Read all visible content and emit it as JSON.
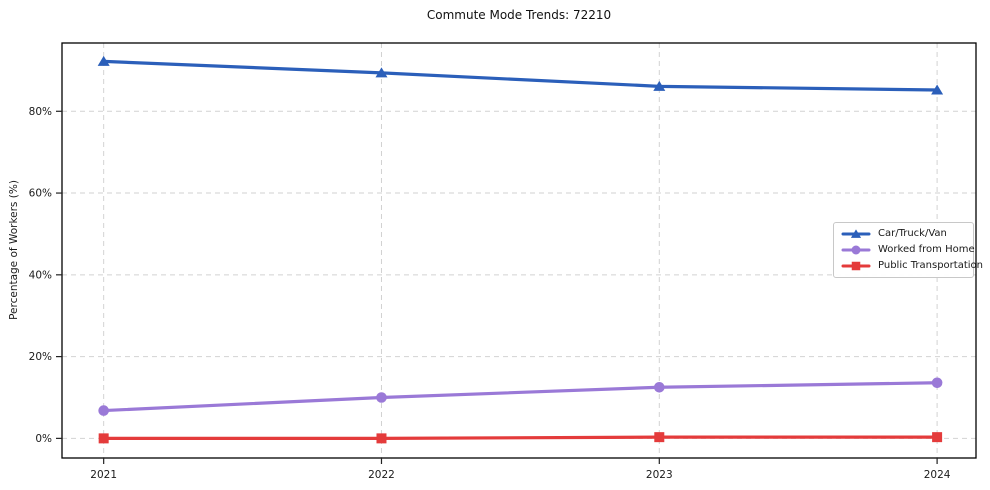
{
  "chart_data": {
    "type": "line",
    "title": "Commute Mode Trends: 72210",
    "xlabel": "",
    "ylabel": "Percentage of Workers (%)",
    "x": [
      2021,
      2022,
      2023,
      2024
    ],
    "x_tick_labels": [
      "2021",
      "2022",
      "2023",
      "2024"
    ],
    "y_ticks": [
      0,
      20,
      40,
      60,
      80
    ],
    "y_tick_labels": [
      "0%",
      "20%",
      "40%",
      "60%",
      "80%"
    ],
    "xlim": [
      2020.85,
      2024.14
    ],
    "ylim": [
      -4.8,
      96.7
    ],
    "grid": true,
    "grid_style": "dashed",
    "grid_color": "#d2d2d2",
    "legend_position": "center-right",
    "series": [
      {
        "name": "Car/Truck/Van",
        "color": "#2b5fba",
        "marker": "triangle",
        "values": [
          92.2,
          89.4,
          86.1,
          85.2
        ]
      },
      {
        "name": "Worked from Home",
        "color": "#9a79d7",
        "marker": "circle",
        "values": [
          6.8,
          10.0,
          12.5,
          13.6
        ]
      },
      {
        "name": "Public Transportation",
        "color": "#e43b3b",
        "marker": "square",
        "values": [
          0.0,
          0.0,
          0.3,
          0.3
        ]
      }
    ]
  }
}
